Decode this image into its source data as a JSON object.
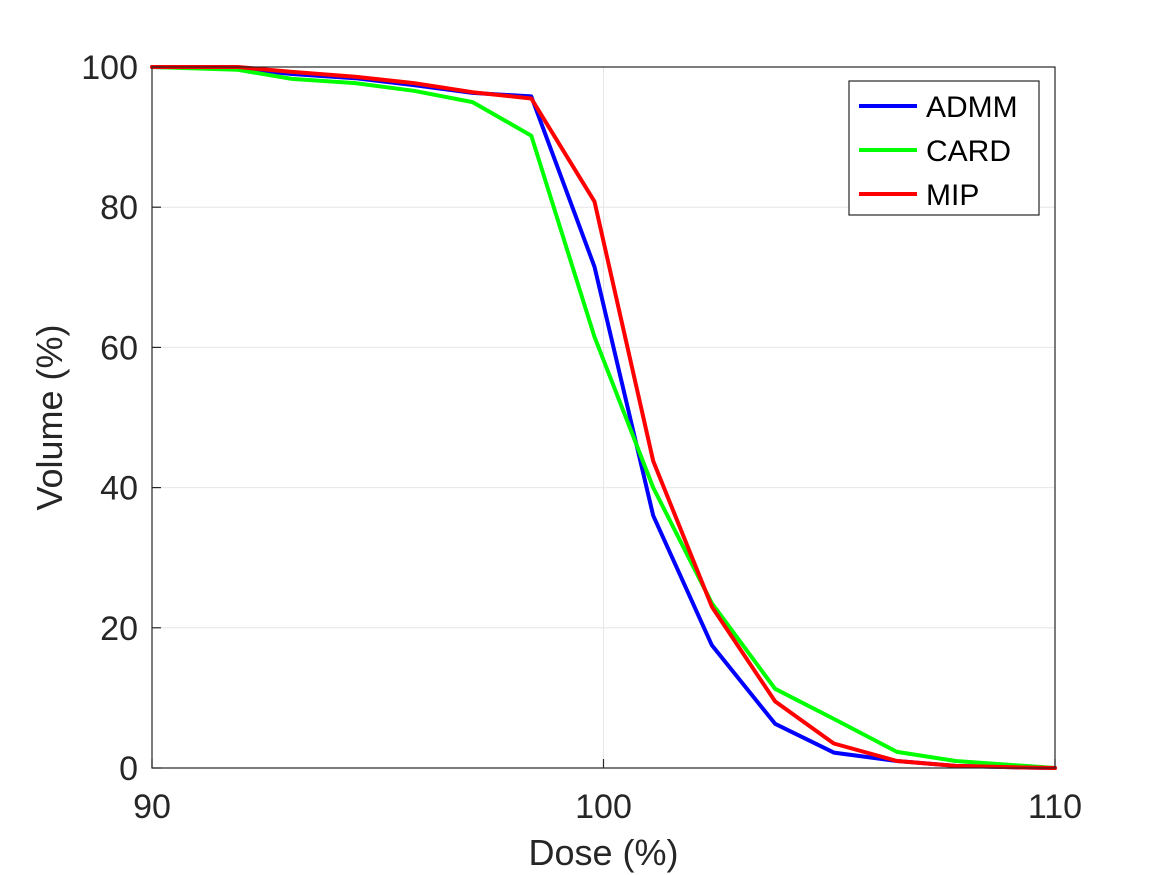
{
  "chart_data": {
    "type": "line",
    "title": "",
    "xlabel": "Dose (%)",
    "ylabel": "Volume (%)",
    "xlim": [
      90,
      110
    ],
    "ylim": [
      0,
      100
    ],
    "xticks": [
      90,
      100,
      110
    ],
    "yticks": [
      0,
      20,
      40,
      60,
      80,
      100
    ],
    "grid": true,
    "legend_position": "top-right",
    "series": [
      {
        "name": "ADMM",
        "color": "#0000ff",
        "x": [
          90,
          91.9,
          93.1,
          94.5,
          95.8,
          97.1,
          98.4,
          99.8,
          101.1,
          102.4,
          103.8,
          105.1,
          106.5,
          107.8,
          109.1,
          110
        ],
        "y": [
          100,
          99.8,
          99,
          98.4,
          97.4,
          96.3,
          95.8,
          71.5,
          36,
          17.5,
          6.3,
          2.2,
          1,
          0.3,
          0.1,
          0
        ]
      },
      {
        "name": "CARD",
        "color": "#00ff00",
        "x": [
          90,
          91.9,
          93.1,
          94.5,
          95.8,
          97.1,
          98.4,
          99.8,
          101.1,
          102.4,
          103.8,
          105.1,
          106.5,
          107.8,
          109.1,
          110
        ],
        "y": [
          100,
          99.6,
          98.3,
          97.7,
          96.6,
          95,
          90.2,
          61.5,
          40,
          23.5,
          11.3,
          7,
          2.3,
          1,
          0.4,
          0
        ]
      },
      {
        "name": "MIP",
        "color": "#ff0000",
        "x": [
          90,
          91.9,
          93.1,
          94.5,
          95.8,
          97.1,
          98.4,
          99.8,
          101.1,
          102.4,
          103.8,
          105.1,
          106.5,
          107.8,
          109.1,
          110
        ],
        "y": [
          100,
          100,
          99.3,
          98.6,
          97.7,
          96.4,
          95.5,
          80.8,
          43.8,
          23,
          9.5,
          3.5,
          1,
          0.3,
          0.1,
          0
        ]
      }
    ]
  }
}
